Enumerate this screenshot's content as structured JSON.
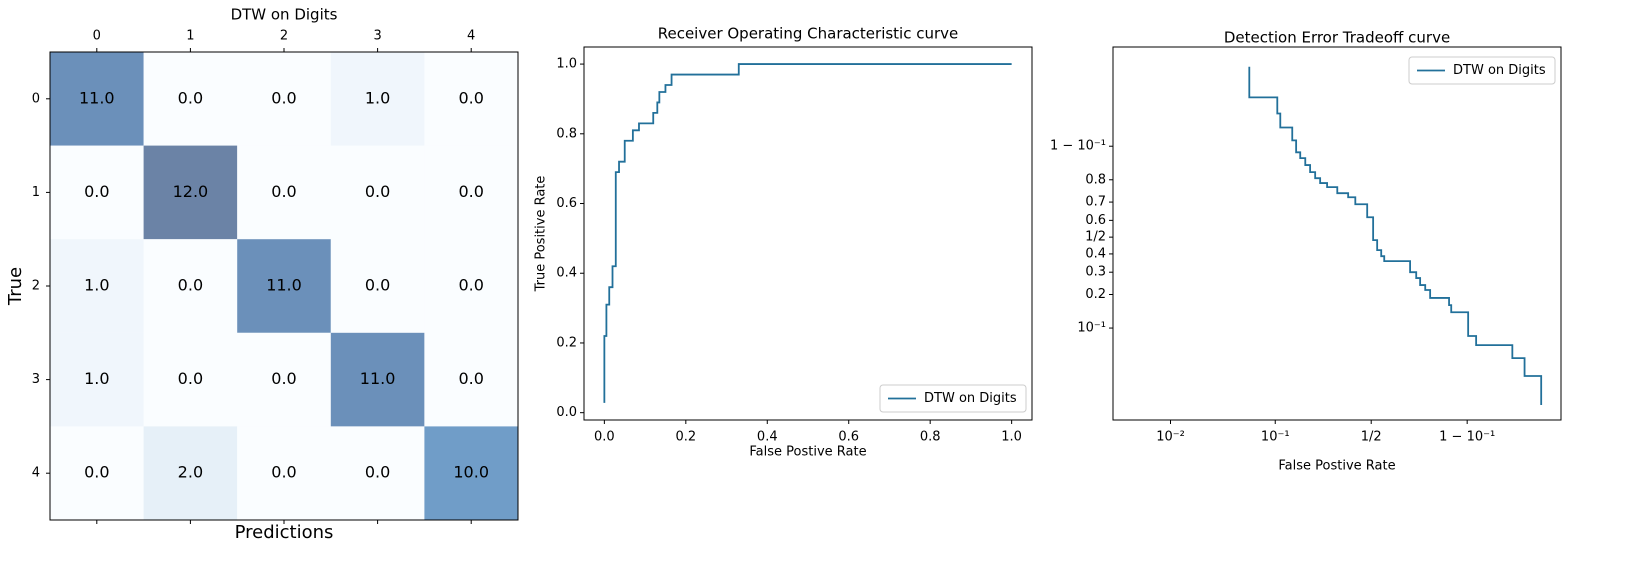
{
  "chart_data": [
    {
      "type": "heatmap",
      "title": "DTW on Digits",
      "xlabel": "Predictions",
      "ylabel": "True",
      "x_categories": [
        "0",
        "1",
        "2",
        "3",
        "4"
      ],
      "y_categories": [
        "0",
        "1",
        "2",
        "3",
        "4"
      ],
      "values": [
        [
          11,
          0,
          0,
          1,
          0
        ],
        [
          0,
          12,
          0,
          0,
          0
        ],
        [
          1,
          0,
          11,
          0,
          0
        ],
        [
          1,
          0,
          0,
          11,
          0
        ],
        [
          0,
          2,
          0,
          0,
          10
        ]
      ],
      "value_labels": [
        [
          "11.0",
          "0.0",
          "0.0",
          "1.0",
          "0.0"
        ],
        [
          "0.0",
          "12.0",
          "0.0",
          "0.0",
          "0.0"
        ],
        [
          "1.0",
          "0.0",
          "11.0",
          "0.0",
          "0.0"
        ],
        [
          "1.0",
          "0.0",
          "0.0",
          "11.0",
          "0.0"
        ],
        [
          "0.0",
          "2.0",
          "0.0",
          "0.0",
          "10.0"
        ]
      ],
      "cmap_colors": [
        "#f7fbff",
        "#deebf7",
        "#c6dbef",
        "#9ecae1",
        "#6baed6",
        "#4292c6",
        "#2171b5",
        "#08519c",
        "#08306b"
      ],
      "alpha": 0.6,
      "clim": [
        0,
        12
      ]
    },
    {
      "type": "line",
      "title": "Receiver Operating Characteristic curve",
      "xlabel": "False Postive Rate",
      "ylabel": "True Positive Rate",
      "x": [
        0,
        0,
        0.005,
        0.005,
        0.012,
        0.012,
        0.02,
        0.02,
        0.028,
        0.028,
        0.036,
        0.036,
        0.05,
        0.05,
        0.07,
        0.07,
        0.085,
        0.085,
        0.12,
        0.12,
        0.13,
        0.13,
        0.135,
        0.135,
        0.15,
        0.15,
        0.165,
        0.165,
        0.33,
        0.33,
        1.0
      ],
      "series": [
        {
          "name": "DTW on Digits",
          "color": "#22709a",
          "values": [
            0.028,
            0.22,
            0.22,
            0.31,
            0.31,
            0.36,
            0.36,
            0.42,
            0.42,
            0.69,
            0.69,
            0.72,
            0.72,
            0.78,
            0.78,
            0.81,
            0.81,
            0.83,
            0.83,
            0.86,
            0.86,
            0.89,
            0.89,
            0.92,
            0.92,
            0.94,
            0.94,
            0.97,
            0.97,
            1.0,
            1.0
          ]
        }
      ],
      "xlim": [
        -0.05,
        1.05
      ],
      "ylim": [
        -0.021,
        1.049
      ],
      "xticks": [
        {
          "value": 0,
          "label": "0.0"
        },
        0.2,
        0.4,
        0.6,
        0.8,
        {
          "value": 1,
          "label": "1.0"
        }
      ],
      "yticks": [
        {
          "value": 0,
          "label": "0.0"
        },
        0.2,
        0.4,
        0.6,
        0.8,
        {
          "value": 1,
          "label": "1.0"
        }
      ],
      "xscale": "linear",
      "yscale": "linear",
      "legend": "lower right"
    },
    {
      "type": "line",
      "title": "Detection Error Tradeoff curve",
      "xlabel": "False Postive Rate",
      "x": [
        0.0578,
        0.0578,
        0.1043,
        0.1043,
        0.1109,
        0.1109,
        0.1409,
        0.1409,
        0.152,
        0.152,
        0.1645,
        0.1645,
        0.181,
        0.181,
        0.198,
        0.198,
        0.217,
        0.217,
        0.237,
        0.237,
        0.267,
        0.267,
        0.315,
        0.315,
        0.371,
        0.371,
        0.41,
        0.41,
        0.477,
        0.477,
        0.511,
        0.511,
        0.534,
        0.534,
        0.557,
        0.557,
        0.574,
        0.574,
        0.709,
        0.709,
        0.737,
        0.737,
        0.754,
        0.754,
        0.775,
        0.775,
        0.794,
        0.794,
        0.856,
        0.856,
        0.862,
        0.862,
        0.902,
        0.902,
        0.917,
        0.917,
        0.962,
        0.962,
        0.971,
        0.971,
        0.98,
        0.98
      ],
      "series": [
        {
          "name": "DTW on Digits",
          "color": "#22709a",
          "values": [
            0.984,
            0.967,
            0.967,
            0.952,
            0.952,
            0.934,
            0.934,
            0.912,
            0.912,
            0.886,
            0.886,
            0.871,
            0.871,
            0.851,
            0.851,
            0.828,
            0.828,
            0.806,
            0.806,
            0.787,
            0.787,
            0.77,
            0.77,
            0.743,
            0.743,
            0.724,
            0.724,
            0.689,
            0.689,
            0.618,
            0.618,
            0.482,
            0.482,
            0.422,
            0.422,
            0.387,
            0.387,
            0.359,
            0.359,
            0.3,
            0.3,
            0.271,
            0.271,
            0.239,
            0.239,
            0.218,
            0.218,
            0.187,
            0.187,
            0.162,
            0.162,
            0.14,
            0.14,
            0.084,
            0.084,
            0.0685,
            0.0685,
            0.051,
            0.051,
            0.0337,
            0.0337,
            0.017
          ]
        }
      ],
      "xlim": [
        0.0027,
        0.9872
      ],
      "ylim": [
        0.0119,
        0.99
      ],
      "xticks": [
        {
          "value": 0.01,
          "label": "10⁻²"
        },
        {
          "value": 0.1,
          "label": "10⁻¹"
        },
        {
          "value": 0.5,
          "label": "1/2"
        },
        {
          "value": 0.9,
          "label": "1 − 10⁻¹"
        }
      ],
      "yticks": [
        {
          "value": 0.9,
          "label": "1 − 10⁻¹"
        },
        0.8,
        0.7,
        0.6,
        {
          "value": 0.5,
          "label": "1/2"
        },
        0.4,
        0.3,
        0.2,
        {
          "value": 0.1,
          "label": "10⁻¹"
        }
      ],
      "xscale": "logit",
      "yscale": "logit",
      "legend": "upper right"
    }
  ]
}
